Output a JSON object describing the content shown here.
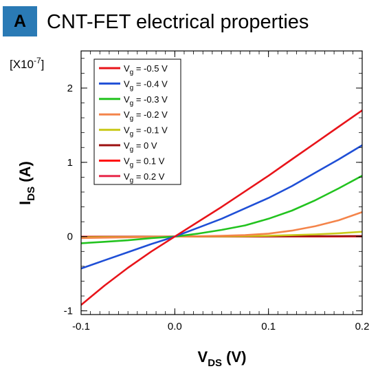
{
  "panel_label": "A",
  "title": "CNT-FET electrical properties",
  "y_multiplier": {
    "base": "[X10",
    "exp": "-7",
    "close": "]"
  },
  "colors": {
    "panel_badge": "#2a7ab5"
  },
  "chart_data": {
    "type": "line",
    "title": "CNT-FET electrical properties",
    "xlabel": {
      "main": "V",
      "sub": "DS",
      "rest": " (V)"
    },
    "ylabel": {
      "main": "I",
      "sub": "DS",
      "rest": " (A)"
    },
    "y_scale_note": "[X10^-7]",
    "xlim": [
      -0.1,
      0.2
    ],
    "ylim": [
      -1.05,
      2.5
    ],
    "x_ticks": [
      -0.1,
      0.0,
      0.1,
      0.2
    ],
    "x_tick_labels": [
      "-0.1",
      "0.0",
      "0.1",
      "0.2"
    ],
    "y_ticks": [
      -1,
      0,
      1,
      2
    ],
    "y_tick_labels": [
      "-1",
      "0",
      "1",
      "2"
    ],
    "grid": false,
    "legend_position": "top-left",
    "x": [
      -0.1,
      -0.075,
      -0.05,
      -0.025,
      0.0,
      0.025,
      0.05,
      0.075,
      0.1,
      0.125,
      0.15,
      0.175,
      0.2
    ],
    "series": [
      {
        "name": "Vg = -0.5 V",
        "legend_prefix": "V",
        "legend_sub": "g",
        "legend_value": " = -0.5 V",
        "color": "#e8141a",
        "values": [
          -0.92,
          -0.66,
          -0.42,
          -0.2,
          0.0,
          0.2,
          0.4,
          0.61,
          0.82,
          1.04,
          1.26,
          1.48,
          1.7
        ]
      },
      {
        "name": "Vg = -0.4 V",
        "legend_prefix": "V",
        "legend_sub": "g",
        "legend_value": " = -0.4 V",
        "color": "#1f4fd6",
        "values": [
          -0.43,
          -0.32,
          -0.21,
          -0.1,
          0.0,
          0.12,
          0.24,
          0.38,
          0.52,
          0.68,
          0.86,
          1.04,
          1.23
        ]
      },
      {
        "name": "Vg = -0.3 V",
        "legend_prefix": "V",
        "legend_sub": "g",
        "legend_value": " = -0.3 V",
        "color": "#22c31f",
        "values": [
          -0.09,
          -0.07,
          -0.05,
          -0.02,
          0.0,
          0.04,
          0.09,
          0.15,
          0.24,
          0.35,
          0.49,
          0.65,
          0.82
        ]
      },
      {
        "name": "Vg = -0.2 V",
        "legend_prefix": "V",
        "legend_sub": "g",
        "legend_value": " = -0.2 V",
        "color": "#f4844a",
        "values": [
          -0.02,
          -0.015,
          -0.01,
          -0.005,
          0.0,
          0.005,
          0.01,
          0.02,
          0.04,
          0.08,
          0.14,
          0.22,
          0.33
        ]
      },
      {
        "name": "Vg = -0.1 V",
        "legend_prefix": "V",
        "legend_sub": "g",
        "legend_value": " = -0.1 V",
        "color": "#c9c91a",
        "values": [
          -0.01,
          -0.008,
          -0.006,
          -0.003,
          0.0,
          0.002,
          0.004,
          0.006,
          0.01,
          0.02,
          0.03,
          0.045,
          0.065
        ]
      },
      {
        "name": "Vg = 0 V",
        "legend_prefix": "V",
        "legend_sub": "g",
        "legend_value": " = 0 V",
        "color": "#9c1010",
        "values": [
          -0.005,
          -0.004,
          -0.003,
          -0.001,
          0.0,
          0.001,
          0.002,
          0.003,
          0.004,
          0.005,
          0.006,
          0.007,
          0.008
        ]
      },
      {
        "name": "Vg = 0.1 V",
        "legend_prefix": "V",
        "legend_sub": "g",
        "legend_value": " = 0.1 V",
        "color": "#ff0a0a",
        "values": [
          -0.003,
          -0.002,
          -0.001,
          -0.0005,
          0.0,
          0.0005,
          0.001,
          0.001,
          0.002,
          0.002,
          0.003,
          0.003,
          0.004
        ]
      },
      {
        "name": "Vg = 0.2 V",
        "legend_prefix": "V",
        "legend_sub": "g",
        "legend_value": " = 0.2 V",
        "color": "#e8284a",
        "values": [
          -0.002,
          -0.001,
          -0.001,
          0.0,
          0.0,
          0.0,
          0.001,
          0.001,
          0.001,
          0.002,
          0.002,
          0.002,
          0.003
        ]
      }
    ]
  }
}
